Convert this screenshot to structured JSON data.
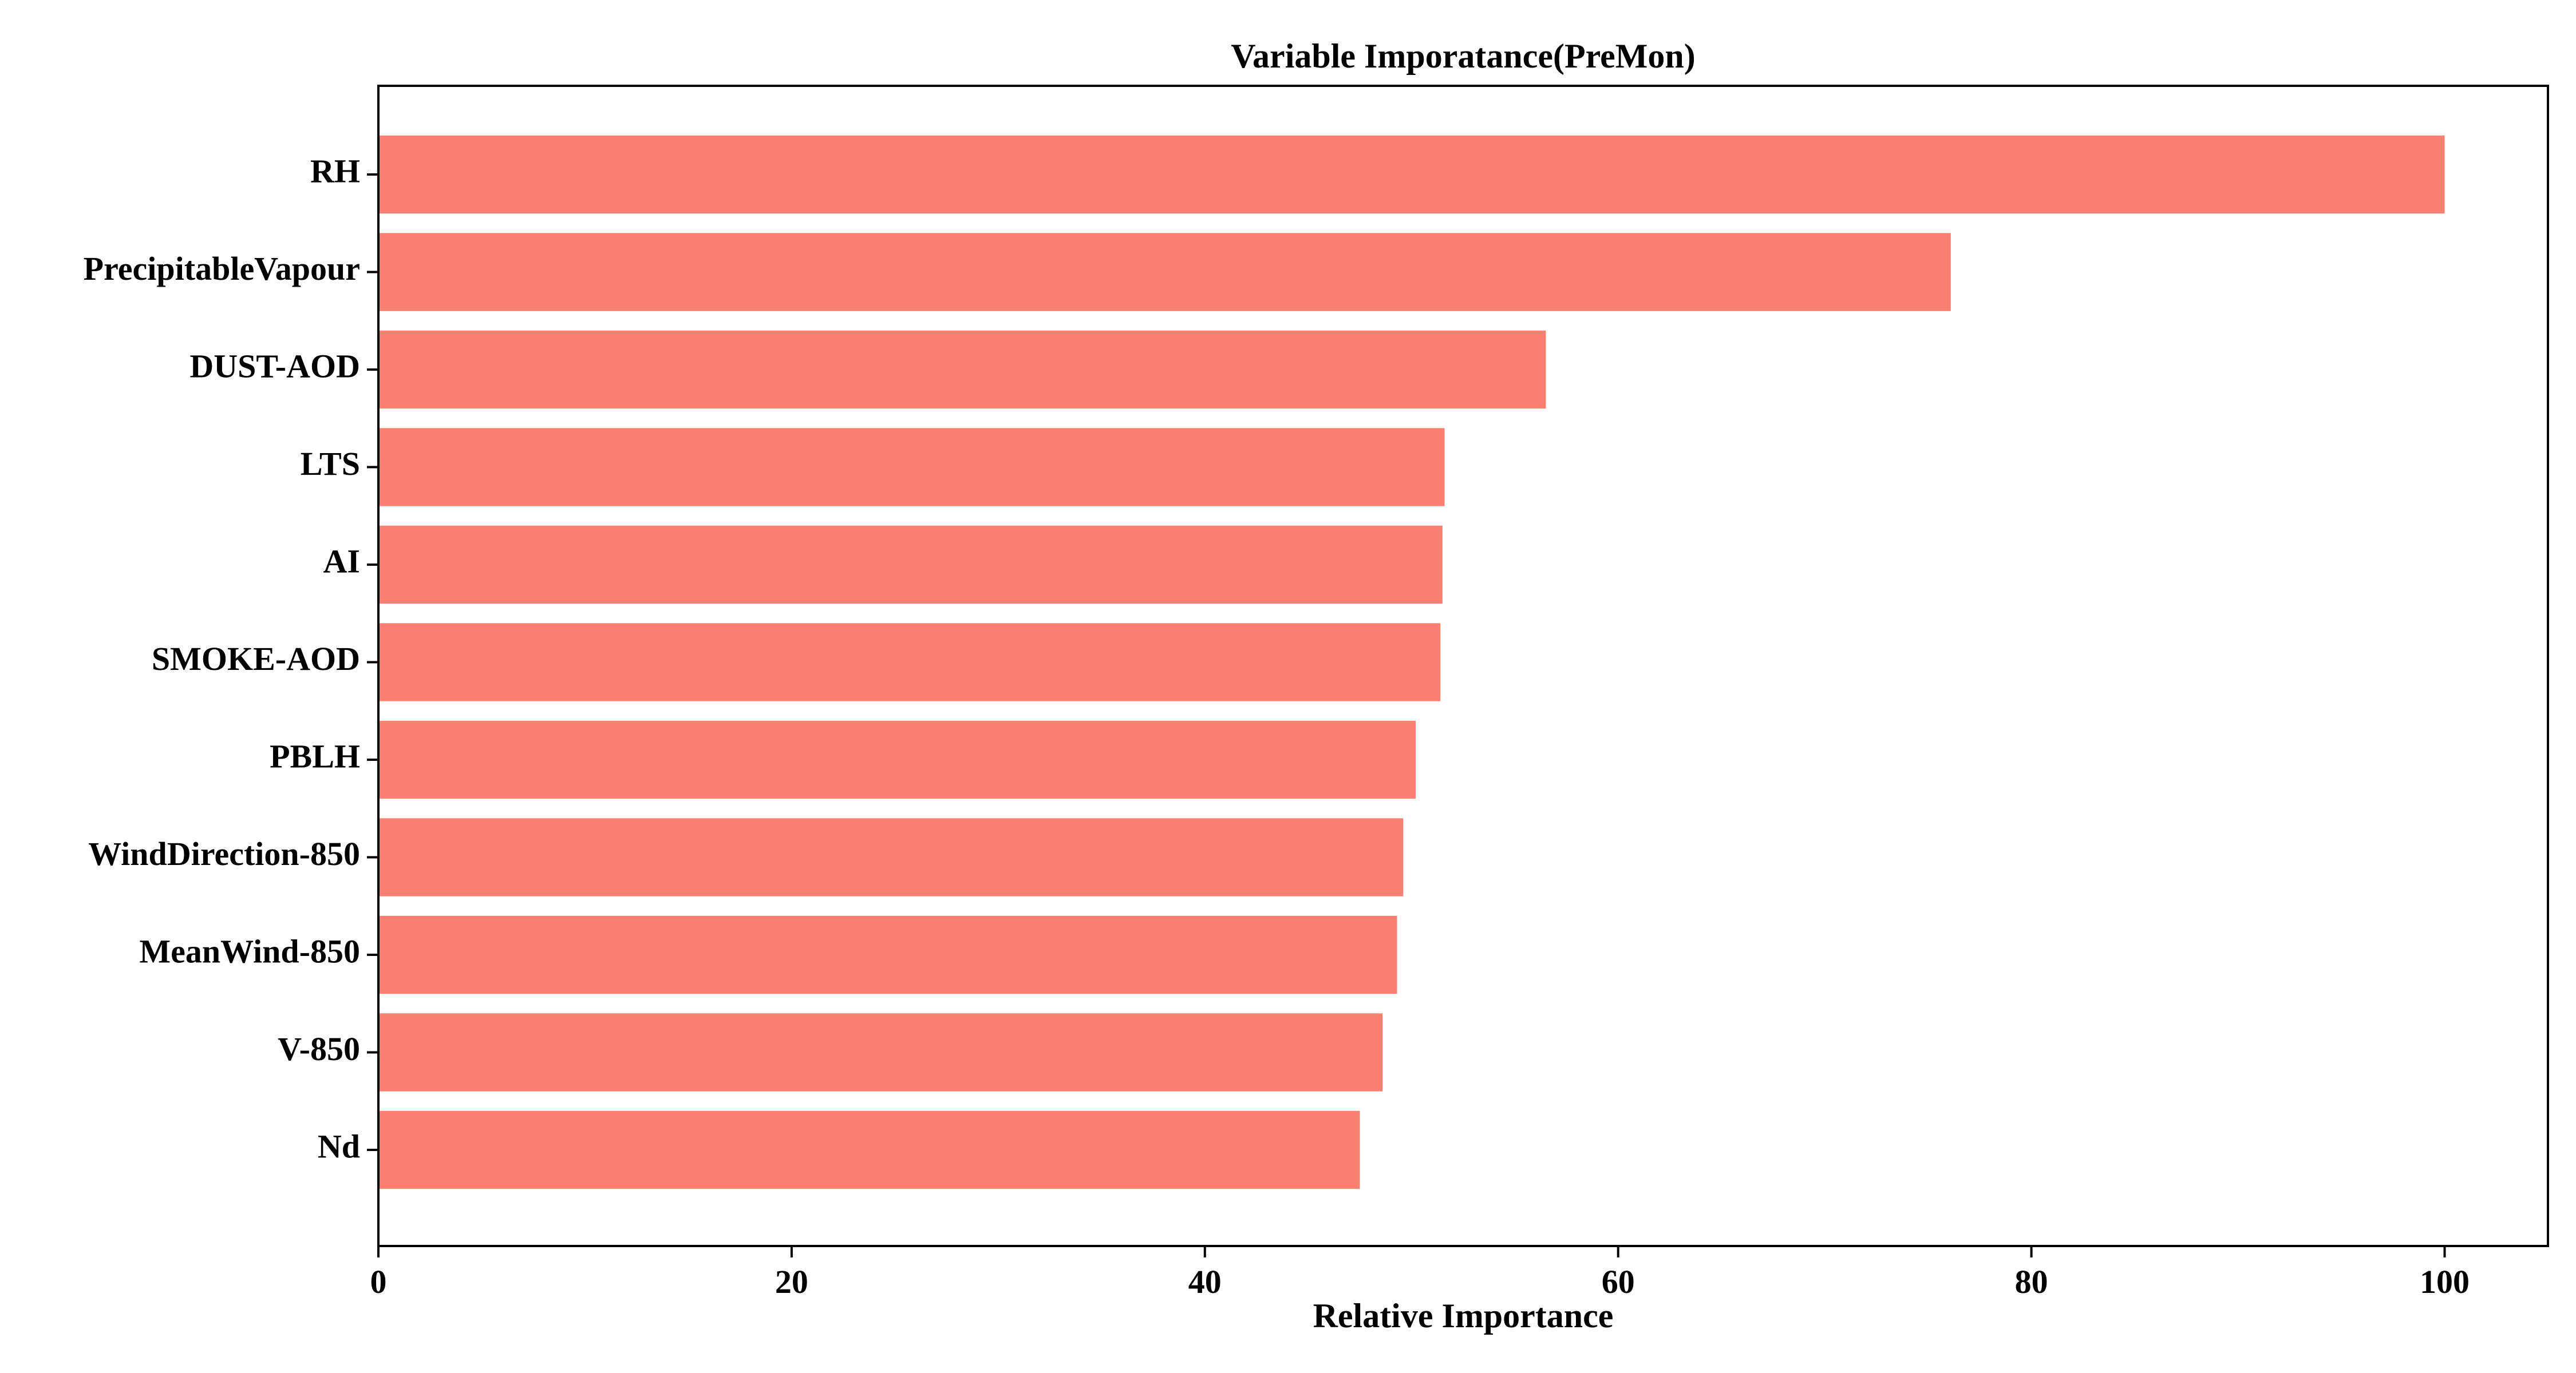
{
  "chart_data": {
    "type": "bar",
    "orientation": "horizontal",
    "title": "Variable Imporatance(PreMon)",
    "xlabel": "Relative Importance",
    "ylabel": "",
    "xlim": [
      0,
      105
    ],
    "xticks": [
      0,
      20,
      40,
      60,
      80,
      100
    ],
    "grid": false,
    "bar_color": "#fa8072",
    "categories": [
      "RH",
      "PrecipitableVapour",
      "DUST-AOD",
      "LTS",
      "AI",
      "SMOKE-AOD",
      "PBLH",
      "WindDirection-850",
      "MeanWind-850",
      "V-850",
      "Nd"
    ],
    "values": [
      100,
      76.1,
      56.5,
      51.6,
      51.5,
      51.4,
      50.2,
      49.6,
      49.3,
      48.6,
      47.5
    ]
  }
}
